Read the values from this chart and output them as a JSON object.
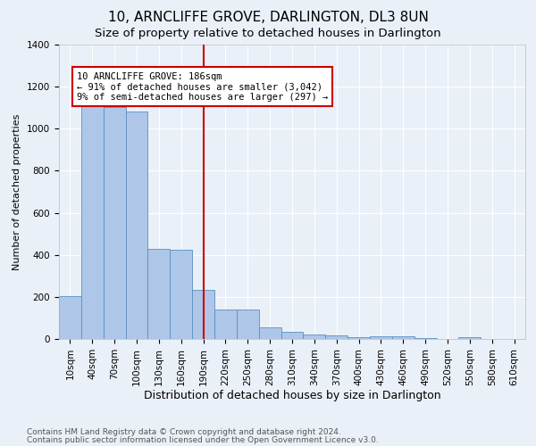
{
  "title": "10, ARNCLIFFE GROVE, DARLINGTON, DL3 8UN",
  "subtitle": "Size of property relative to detached houses in Darlington",
  "xlabel": "Distribution of detached houses by size in Darlington",
  "ylabel": "Number of detached properties",
  "bar_labels": [
    "10sqm",
    "40sqm",
    "70sqm",
    "100sqm",
    "130sqm",
    "160sqm",
    "190sqm",
    "220sqm",
    "250sqm",
    "280sqm",
    "310sqm",
    "340sqm",
    "370sqm",
    "400sqm",
    "430sqm",
    "460sqm",
    "490sqm",
    "520sqm",
    "550sqm",
    "580sqm",
    "610sqm"
  ],
  "bar_values": [
    205,
    1110,
    1105,
    1080,
    430,
    425,
    235,
    140,
    140,
    55,
    35,
    20,
    18,
    10,
    12,
    12,
    4,
    0,
    10,
    0,
    0
  ],
  "bar_color": "#aec6e8",
  "bar_edge_color": "#5a8fc0",
  "property_line_x": 6.0,
  "property_line_color": "#cc0000",
  "annotation_text": "10 ARNCLIFFE GROVE: 186sqm\n← 91% of detached houses are smaller (3,042)\n9% of semi-detached houses are larger (297) →",
  "annotation_box_color": "#ffffff",
  "annotation_box_edge": "#cc0000",
  "ylim": [
    0,
    1400
  ],
  "yticks": [
    0,
    200,
    400,
    600,
    800,
    1000,
    1200,
    1400
  ],
  "background_color": "#eaf0f8",
  "grid_color": "#ffffff",
  "footer1": "Contains HM Land Registry data © Crown copyright and database right 2024.",
  "footer2": "Contains public sector information licensed under the Open Government Licence v3.0.",
  "title_fontsize": 11,
  "subtitle_fontsize": 9.5,
  "xlabel_fontsize": 9,
  "ylabel_fontsize": 8,
  "tick_fontsize": 7.5,
  "annotation_fontsize": 7.5,
  "footer_fontsize": 6.5
}
